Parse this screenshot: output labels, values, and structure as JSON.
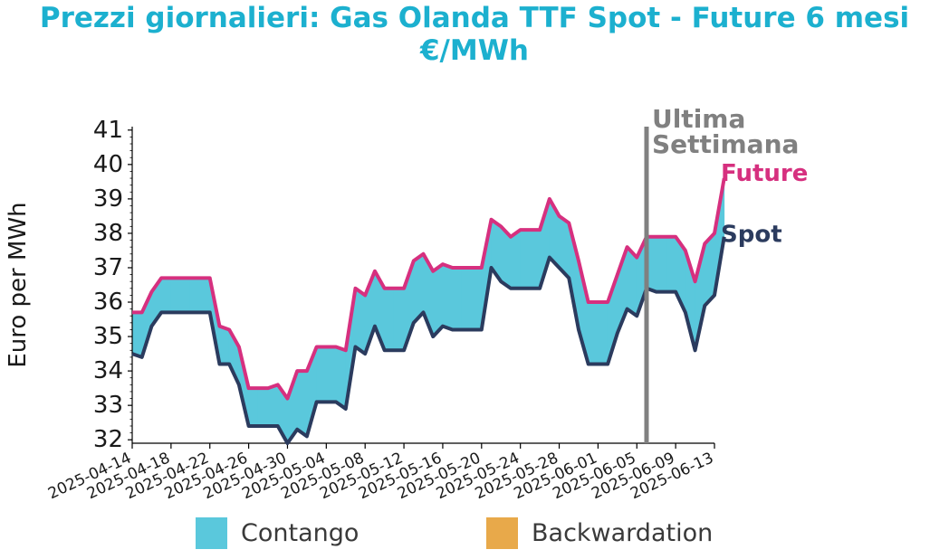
{
  "title": {
    "line1": "Prezzi giornalieri: Gas Olanda TTF Spot - Future 6 mesi",
    "line2": "€/MWh"
  },
  "colors": {
    "title": "#1cb0cf",
    "future": "#d6307f",
    "spot": "#2b3b5e",
    "contango": "#5ac8dc",
    "backwardation": "#e8a94a",
    "marker": "#808080"
  },
  "legend": {
    "contango": "Contango",
    "backwardation": "Backwardation"
  },
  "chart_data": {
    "type": "area",
    "ylabel": "Euro per MWh",
    "ylim": [
      31.9,
      41.1
    ],
    "yticks": [
      32,
      33,
      34,
      35,
      36,
      37,
      38,
      39,
      40,
      41
    ],
    "xlim": [
      "2025-04-14",
      "2025-06-13"
    ],
    "xticks": [
      "2025-04-14",
      "2025-04-18",
      "2025-04-22",
      "2025-04-26",
      "2025-04-30",
      "2025-05-04",
      "2025-05-08",
      "2025-05-12",
      "2025-05-16",
      "2025-05-20",
      "2025-05-24",
      "2025-05-28",
      "2025-06-01",
      "2025-06-05",
      "2025-06-09",
      "2025-06-13"
    ],
    "marker": {
      "date": "2025-06-06",
      "label_line1": "Ultima",
      "label_line2": "Settimana"
    },
    "series": [
      {
        "name": "Future",
        "points": [
          [
            "2025-04-14",
            35.7
          ],
          [
            "2025-04-15",
            35.7
          ],
          [
            "2025-04-16",
            36.3
          ],
          [
            "2025-04-17",
            36.7
          ],
          [
            "2025-04-18",
            36.7
          ],
          [
            "2025-04-19",
            36.7
          ],
          [
            "2025-04-20",
            36.7
          ],
          [
            "2025-04-21",
            36.7
          ],
          [
            "2025-04-22",
            36.7
          ],
          [
            "2025-04-23",
            35.3
          ],
          [
            "2025-04-24",
            35.2
          ],
          [
            "2025-04-25",
            34.7
          ],
          [
            "2025-04-26",
            33.5
          ],
          [
            "2025-04-27",
            33.5
          ],
          [
            "2025-04-28",
            33.5
          ],
          [
            "2025-04-29",
            33.6
          ],
          [
            "2025-04-30",
            33.2
          ],
          [
            "2025-05-01",
            34.0
          ],
          [
            "2025-05-02",
            34.0
          ],
          [
            "2025-05-03",
            34.7
          ],
          [
            "2025-05-04",
            34.7
          ],
          [
            "2025-05-05",
            34.7
          ],
          [
            "2025-05-06",
            34.6
          ],
          [
            "2025-05-07",
            36.4
          ],
          [
            "2025-05-08",
            36.2
          ],
          [
            "2025-05-09",
            36.9
          ],
          [
            "2025-05-10",
            36.4
          ],
          [
            "2025-05-11",
            36.4
          ],
          [
            "2025-05-12",
            36.4
          ],
          [
            "2025-05-13",
            37.2
          ],
          [
            "2025-05-14",
            37.4
          ],
          [
            "2025-05-15",
            36.9
          ],
          [
            "2025-05-16",
            37.1
          ],
          [
            "2025-05-17",
            37.0
          ],
          [
            "2025-05-18",
            37.0
          ],
          [
            "2025-05-19",
            37.0
          ],
          [
            "2025-05-20",
            37.0
          ],
          [
            "2025-05-21",
            38.4
          ],
          [
            "2025-05-22",
            38.2
          ],
          [
            "2025-05-23",
            37.9
          ],
          [
            "2025-05-24",
            38.1
          ],
          [
            "2025-05-25",
            38.1
          ],
          [
            "2025-05-26",
            38.1
          ],
          [
            "2025-05-27",
            39.0
          ],
          [
            "2025-05-28",
            38.5
          ],
          [
            "2025-05-29",
            38.3
          ],
          [
            "2025-05-30",
            37.2
          ],
          [
            "2025-05-31",
            36.0
          ],
          [
            "2025-06-01",
            36.0
          ],
          [
            "2025-06-02",
            36.0
          ],
          [
            "2025-06-03",
            36.8
          ],
          [
            "2025-06-04",
            37.6
          ],
          [
            "2025-06-05",
            37.3
          ],
          [
            "2025-06-06",
            37.9
          ],
          [
            "2025-06-07",
            37.9
          ],
          [
            "2025-06-08",
            37.9
          ],
          [
            "2025-06-09",
            37.9
          ],
          [
            "2025-06-10",
            37.5
          ],
          [
            "2025-06-11",
            36.6
          ],
          [
            "2025-06-12",
            37.7
          ],
          [
            "2025-06-13",
            38.0
          ],
          [
            "2025-06-14",
            39.6
          ]
        ]
      },
      {
        "name": "Spot",
        "points": [
          [
            "2025-04-14",
            34.5
          ],
          [
            "2025-04-15",
            34.4
          ],
          [
            "2025-04-16",
            35.3
          ],
          [
            "2025-04-17",
            35.7
          ],
          [
            "2025-04-18",
            35.7
          ],
          [
            "2025-04-19",
            35.7
          ],
          [
            "2025-04-20",
            35.7
          ],
          [
            "2025-04-21",
            35.7
          ],
          [
            "2025-04-22",
            35.7
          ],
          [
            "2025-04-23",
            34.2
          ],
          [
            "2025-04-24",
            34.2
          ],
          [
            "2025-04-25",
            33.6
          ],
          [
            "2025-04-26",
            32.4
          ],
          [
            "2025-04-27",
            32.4
          ],
          [
            "2025-04-28",
            32.4
          ],
          [
            "2025-04-29",
            32.4
          ],
          [
            "2025-04-30",
            31.9
          ],
          [
            "2025-05-01",
            32.3
          ],
          [
            "2025-05-02",
            32.1
          ],
          [
            "2025-05-03",
            33.1
          ],
          [
            "2025-05-04",
            33.1
          ],
          [
            "2025-05-05",
            33.1
          ],
          [
            "2025-05-06",
            32.9
          ],
          [
            "2025-05-07",
            34.7
          ],
          [
            "2025-05-08",
            34.5
          ],
          [
            "2025-05-09",
            35.3
          ],
          [
            "2025-05-10",
            34.6
          ],
          [
            "2025-05-11",
            34.6
          ],
          [
            "2025-05-12",
            34.6
          ],
          [
            "2025-05-13",
            35.4
          ],
          [
            "2025-05-14",
            35.7
          ],
          [
            "2025-05-15",
            35.0
          ],
          [
            "2025-05-16",
            35.3
          ],
          [
            "2025-05-17",
            35.2
          ],
          [
            "2025-05-18",
            35.2
          ],
          [
            "2025-05-19",
            35.2
          ],
          [
            "2025-05-20",
            35.2
          ],
          [
            "2025-05-21",
            37.0
          ],
          [
            "2025-05-22",
            36.6
          ],
          [
            "2025-05-23",
            36.4
          ],
          [
            "2025-05-24",
            36.4
          ],
          [
            "2025-05-25",
            36.4
          ],
          [
            "2025-05-26",
            36.4
          ],
          [
            "2025-05-27",
            37.3
          ],
          [
            "2025-05-28",
            37.0
          ],
          [
            "2025-05-29",
            36.7
          ],
          [
            "2025-05-30",
            35.2
          ],
          [
            "2025-05-31",
            34.2
          ],
          [
            "2025-06-01",
            34.2
          ],
          [
            "2025-06-02",
            34.2
          ],
          [
            "2025-06-03",
            35.1
          ],
          [
            "2025-06-04",
            35.8
          ],
          [
            "2025-06-05",
            35.6
          ],
          [
            "2025-06-06",
            36.4
          ],
          [
            "2025-06-07",
            36.3
          ],
          [
            "2025-06-08",
            36.3
          ],
          [
            "2025-06-09",
            36.3
          ],
          [
            "2025-06-10",
            35.7
          ],
          [
            "2025-06-11",
            34.6
          ],
          [
            "2025-06-12",
            35.9
          ],
          [
            "2025-06-13",
            36.2
          ],
          [
            "2025-06-14",
            37.9
          ]
        ]
      }
    ]
  }
}
